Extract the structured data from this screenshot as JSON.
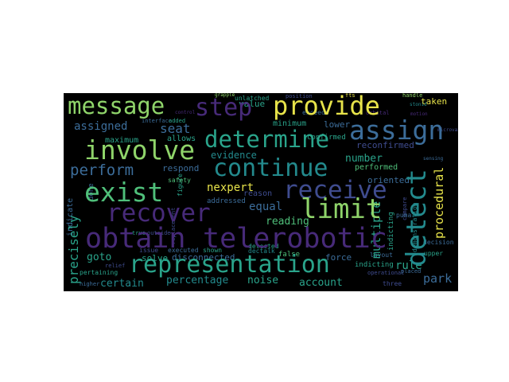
{
  "palette": {
    "background": "#000000",
    "yellow": "#e7e34a",
    "light_green": "#8fd46a",
    "green": "#4fbf7a",
    "teal": "#2aa48b",
    "dark_teal": "#238a8d",
    "blue": "#3c6d9a",
    "indigo": "#3f4c8f",
    "purple": "#472a79",
    "dark_purple": "#3b1d5e"
  },
  "words": {
    "message": "message",
    "step": "step",
    "provide": "provide",
    "assign": "assign",
    "involve": "involve",
    "determine": "determine",
    "continue": "continue",
    "exist": "exist",
    "receive": "receive",
    "detect": "detect",
    "recover": "recover",
    "limit": "limit",
    "obtain": "obtain",
    "telerobotic": "telerobotic",
    "representation": "representation",
    "perform": "perform",
    "assigned": "assigned",
    "seat": "seat",
    "maximum": "maximum",
    "allows": "allows",
    "evidence": "evidence",
    "number": "number",
    "performed": "performed",
    "oriented": "oriented",
    "procedural": "procedural",
    "nexpert": "nexpert",
    "equal": "equal",
    "reading": "reading",
    "multiple": "multiple",
    "rule": "rule",
    "park": "park",
    "precisely": "precisely",
    "goto": "goto",
    "solve": "solve",
    "disconnected": "disconnected",
    "force": "force",
    "certain": "certain",
    "percentage": "percentage",
    "noise": "noise",
    "account": "account",
    "taken": "taken",
    "value": "value",
    "minimum": "minimum",
    "lower": "lower",
    "respond": "respond",
    "safety": "safety",
    "indicate": "indicate",
    "done": "done",
    "unlatched": "unlatched",
    "position": "position",
    "exceeds": "exceeds",
    "confirmed": "confirmed",
    "interface": "interface",
    "added": "added",
    "reason": "reason",
    "addressed": "addressed",
    "executed": "executed",
    "shown": "shown",
    "detected": "detected",
    "issue": "issue",
    "dectalk": "dectalk",
    "false": "false",
    "layout": "layout",
    "indicting": "indicting",
    "upper": "upper",
    "compare": "compare",
    "demonstration": "demonstration",
    "decision": "decision",
    "operational": "operational",
    "placed": "placed",
    "three": "three",
    "puma": "puma",
    "orbital": "orbital",
    "handle": "handle",
    "replacement": "replacement",
    "figure": "figure",
    "pertaining": "pertaining",
    "relief": "relief",
    "higher": "higher",
    "true": "true",
    "outside": "outside",
    "stonid": "stonid",
    "fts": "fts",
    "grapple": "grapple",
    "reconfirmed": "reconfirmed",
    "microvax": "microvax",
    "motion": "motion",
    "sensing": "sensing",
    "control": "control"
  }
}
